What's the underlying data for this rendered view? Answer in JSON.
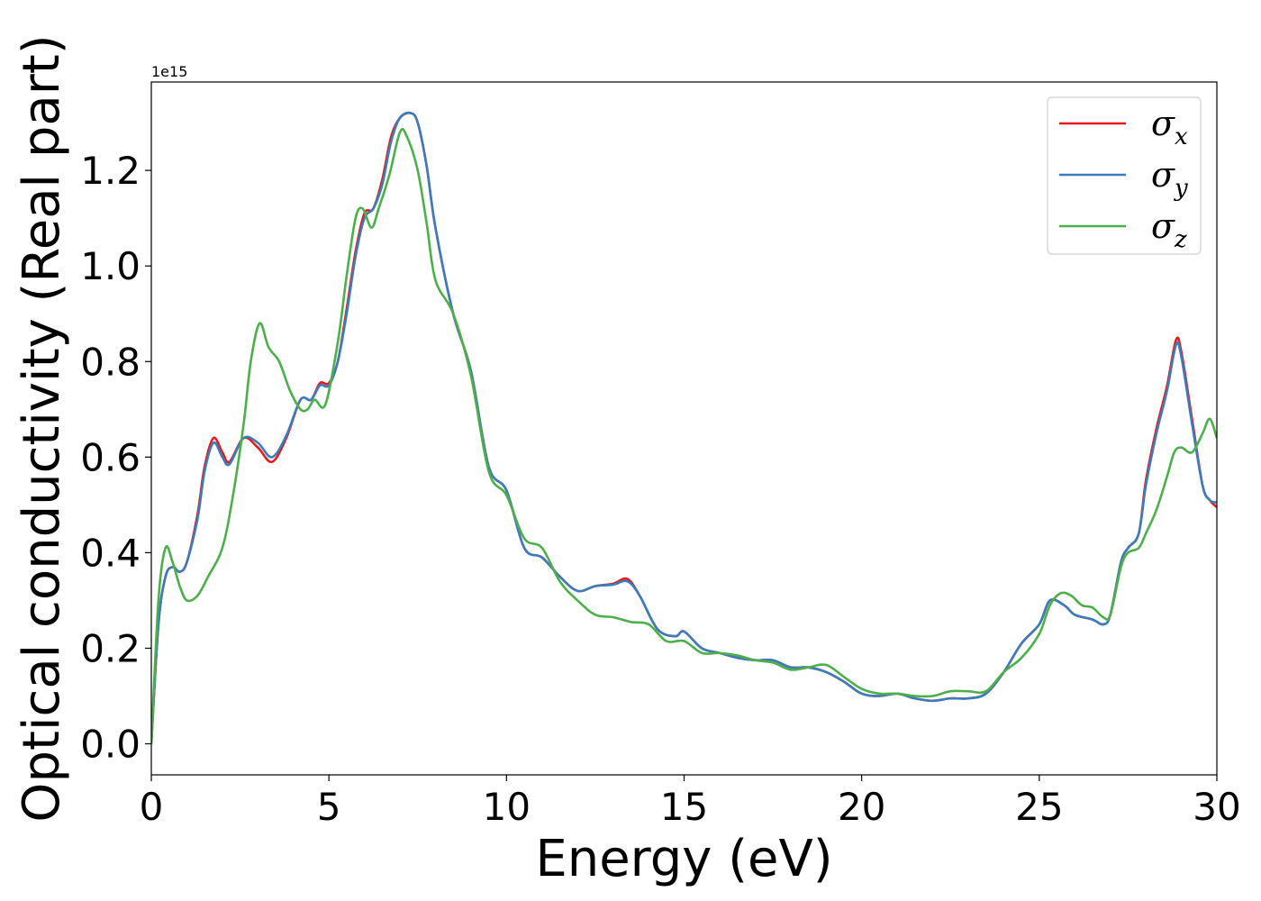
{
  "chart_data": {
    "type": "line",
    "xlabel": "Energy (eV)",
    "ylabel": "Optical conductivity (Real part)",
    "y_offset_label": "1e15",
    "xlim": [
      0,
      30
    ],
    "ylim": [
      -0.065,
      1.385
    ],
    "grid": false,
    "legend_position": "top-right",
    "xticks": [
      0,
      5,
      10,
      15,
      20,
      25,
      30
    ],
    "xtick_labels": [
      "0",
      "5",
      "10",
      "15",
      "20",
      "25",
      "30"
    ],
    "yticks": [
      0.0,
      0.2,
      0.4,
      0.6,
      0.8,
      1.0,
      1.2
    ],
    "ytick_labels": [
      "0.0",
      "0.2",
      "0.4",
      "0.6",
      "0.8",
      "1.0",
      "1.2"
    ],
    "series": [
      {
        "name": "σx",
        "legend_base": "σ",
        "legend_sub": "x",
        "color": "#e41a1c",
        "x": [
          0,
          0.2,
          0.4,
          0.6,
          0.8,
          1.0,
          1.3,
          1.5,
          1.75,
          2.0,
          2.2,
          2.6,
          3.0,
          3.4,
          3.8,
          4.2,
          4.5,
          4.75,
          5.0,
          5.25,
          5.5,
          5.75,
          6.0,
          6.25,
          6.5,
          6.75,
          7.0,
          7.3,
          7.5,
          7.75,
          8.0,
          8.5,
          9.0,
          9.5,
          10.0,
          10.5,
          11.0,
          11.5,
          12.0,
          12.5,
          13.0,
          13.4,
          13.75,
          14.25,
          14.75,
          15.0,
          15.5,
          16.0,
          16.5,
          17.0,
          17.5,
          18.0,
          18.5,
          19.0,
          19.5,
          20.0,
          20.5,
          21.0,
          21.5,
          22.0,
          22.5,
          23.0,
          23.5,
          24.0,
          24.5,
          25.0,
          25.3,
          25.7,
          26.0,
          26.5,
          26.8,
          27.0,
          27.3,
          27.5,
          27.8,
          28.0,
          28.3,
          28.6,
          28.85,
          29.0,
          29.3,
          29.6,
          29.8,
          30.0
        ],
        "y": [
          0.0,
          0.25,
          0.35,
          0.37,
          0.36,
          0.38,
          0.48,
          0.58,
          0.64,
          0.61,
          0.59,
          0.64,
          0.62,
          0.59,
          0.64,
          0.72,
          0.72,
          0.755,
          0.755,
          0.8,
          0.91,
          1.03,
          1.11,
          1.12,
          1.18,
          1.27,
          1.31,
          1.32,
          1.3,
          1.21,
          1.08,
          0.9,
          0.78,
          0.58,
          0.53,
          0.41,
          0.39,
          0.35,
          0.32,
          0.33,
          0.335,
          0.345,
          0.31,
          0.24,
          0.225,
          0.235,
          0.2,
          0.19,
          0.18,
          0.175,
          0.175,
          0.16,
          0.16,
          0.15,
          0.13,
          0.105,
          0.1,
          0.105,
          0.095,
          0.09,
          0.095,
          0.095,
          0.105,
          0.15,
          0.21,
          0.25,
          0.3,
          0.29,
          0.27,
          0.26,
          0.25,
          0.27,
          0.38,
          0.41,
          0.44,
          0.55,
          0.66,
          0.75,
          0.845,
          0.82,
          0.68,
          0.54,
          0.51,
          0.495
        ]
      },
      {
        "name": "σy",
        "legend_base": "σ",
        "legend_sub": "y",
        "color": "#3b7dba",
        "x": [
          0,
          0.2,
          0.4,
          0.6,
          0.8,
          1.0,
          1.3,
          1.5,
          1.75,
          2.0,
          2.2,
          2.6,
          3.0,
          3.4,
          3.8,
          4.2,
          4.5,
          4.75,
          5.0,
          5.25,
          5.5,
          5.75,
          6.0,
          6.25,
          6.5,
          6.75,
          7.0,
          7.3,
          7.5,
          7.75,
          8.0,
          8.5,
          9.0,
          9.5,
          10.0,
          10.5,
          11.0,
          11.5,
          12.0,
          12.5,
          13.0,
          13.4,
          13.75,
          14.25,
          14.75,
          15.0,
          15.5,
          16.0,
          16.5,
          17.0,
          17.5,
          18.0,
          18.5,
          19.0,
          19.5,
          20.0,
          20.5,
          21.0,
          21.5,
          22.0,
          22.5,
          23.0,
          23.5,
          24.0,
          24.5,
          25.0,
          25.3,
          25.7,
          26.0,
          26.5,
          26.8,
          27.0,
          27.3,
          27.5,
          27.8,
          28.0,
          28.3,
          28.6,
          28.85,
          29.0,
          29.3,
          29.6,
          29.8,
          30.0
        ],
        "y": [
          0.0,
          0.25,
          0.35,
          0.37,
          0.36,
          0.38,
          0.47,
          0.57,
          0.63,
          0.6,
          0.585,
          0.64,
          0.63,
          0.6,
          0.645,
          0.72,
          0.72,
          0.75,
          0.75,
          0.8,
          0.9,
          1.02,
          1.1,
          1.12,
          1.17,
          1.26,
          1.31,
          1.32,
          1.3,
          1.21,
          1.08,
          0.9,
          0.78,
          0.58,
          0.53,
          0.41,
          0.39,
          0.35,
          0.32,
          0.33,
          0.333,
          0.34,
          0.31,
          0.24,
          0.225,
          0.235,
          0.2,
          0.19,
          0.18,
          0.175,
          0.175,
          0.16,
          0.16,
          0.15,
          0.13,
          0.105,
          0.1,
          0.105,
          0.095,
          0.09,
          0.095,
          0.095,
          0.105,
          0.15,
          0.21,
          0.25,
          0.3,
          0.29,
          0.27,
          0.26,
          0.25,
          0.27,
          0.38,
          0.41,
          0.44,
          0.54,
          0.65,
          0.74,
          0.835,
          0.81,
          0.67,
          0.54,
          0.51,
          0.505
        ]
      },
      {
        "name": "σz",
        "legend_base": "σ",
        "legend_sub": "z",
        "color": "#4daf4a",
        "x": [
          0,
          0.2,
          0.4,
          0.6,
          0.8,
          1.0,
          1.3,
          1.6,
          2.0,
          2.3,
          2.6,
          2.8,
          3.05,
          3.3,
          3.6,
          3.9,
          4.2,
          4.4,
          4.6,
          4.9,
          5.25,
          5.5,
          5.75,
          5.95,
          6.2,
          6.4,
          6.7,
          7.0,
          7.2,
          7.5,
          7.75,
          8.0,
          8.5,
          9.0,
          9.5,
          10.0,
          10.5,
          11.0,
          11.5,
          12.0,
          12.5,
          13.0,
          13.5,
          14.0,
          14.5,
          15.0,
          15.5,
          16.0,
          16.5,
          17.0,
          17.5,
          18.0,
          18.5,
          19.0,
          19.5,
          20.0,
          20.5,
          21.0,
          21.5,
          22.0,
          22.5,
          23.0,
          23.5,
          24.0,
          24.5,
          25.0,
          25.3,
          25.6,
          25.9,
          26.2,
          26.5,
          26.8,
          27.0,
          27.3,
          27.5,
          27.8,
          28.0,
          28.3,
          28.6,
          28.8,
          29.0,
          29.3,
          29.6,
          29.8,
          30.0
        ],
        "y": [
          0.0,
          0.3,
          0.41,
          0.38,
          0.33,
          0.3,
          0.31,
          0.35,
          0.41,
          0.52,
          0.67,
          0.8,
          0.88,
          0.83,
          0.8,
          0.74,
          0.7,
          0.7,
          0.72,
          0.71,
          0.84,
          0.98,
          1.1,
          1.12,
          1.08,
          1.12,
          1.19,
          1.28,
          1.27,
          1.2,
          1.09,
          0.97,
          0.9,
          0.77,
          0.57,
          0.52,
          0.43,
          0.41,
          0.34,
          0.3,
          0.27,
          0.265,
          0.255,
          0.25,
          0.215,
          0.215,
          0.19,
          0.19,
          0.185,
          0.175,
          0.17,
          0.155,
          0.16,
          0.165,
          0.14,
          0.115,
          0.105,
          0.105,
          0.1,
          0.1,
          0.11,
          0.11,
          0.11,
          0.15,
          0.18,
          0.23,
          0.29,
          0.315,
          0.31,
          0.29,
          0.285,
          0.265,
          0.27,
          0.37,
          0.4,
          0.41,
          0.44,
          0.49,
          0.56,
          0.61,
          0.62,
          0.61,
          0.65,
          0.68,
          0.64
        ]
      }
    ]
  }
}
